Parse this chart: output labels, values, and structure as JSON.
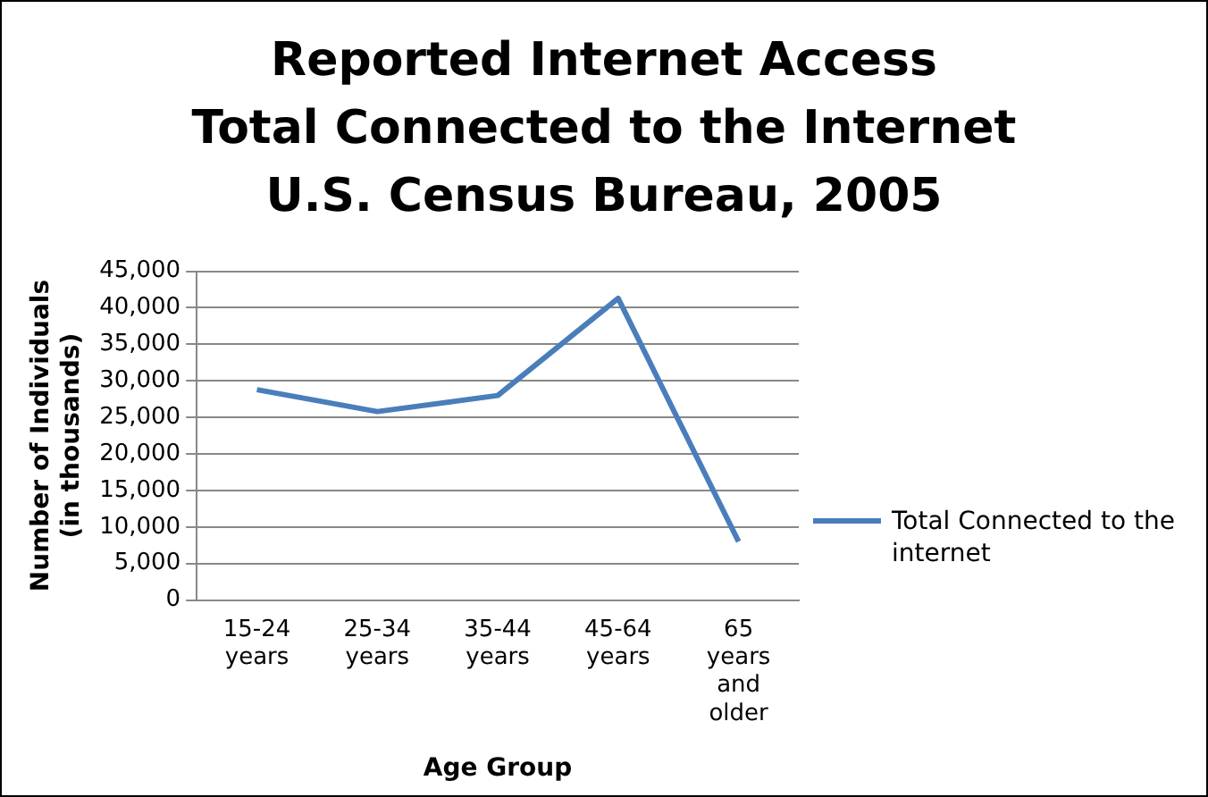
{
  "chart_data": {
    "type": "line",
    "title": "Reported Internet Access\nTotal Connected to the Internet\nU.S. Census Bureau, 2005",
    "xlabel": "Age Group",
    "ylabel": "Number of Individuals\n(in thousands)",
    "categories": [
      "15-24 years",
      "25-34 years",
      "35-44 years",
      "45-64 years",
      "65 years and older"
    ],
    "series": [
      {
        "name": "Total Connected to the internet",
        "color": "#4a7ebb",
        "values": [
          28800,
          25800,
          28000,
          41300,
          8000
        ]
      }
    ],
    "ylim": [
      0,
      45000
    ],
    "yticks": [
      0,
      {
        "value": 5000,
        "label": "5,000"
      },
      {
        "value": 10000,
        "label": "10,000"
      },
      {
        "value": 15000,
        "label": "15,000"
      },
      {
        "value": 20000,
        "label": "20,000"
      },
      {
        "value": 25000,
        "label": "25,000"
      },
      {
        "value": 30000,
        "label": "30,000"
      },
      {
        "value": 35000,
        "label": "35,000"
      },
      {
        "value": 40000,
        "label": "40,000"
      },
      {
        "value": 45000,
        "label": "45,000"
      }
    ],
    "grid": "y",
    "legend": "right",
    "marker": "none",
    "line_style": "solid"
  }
}
